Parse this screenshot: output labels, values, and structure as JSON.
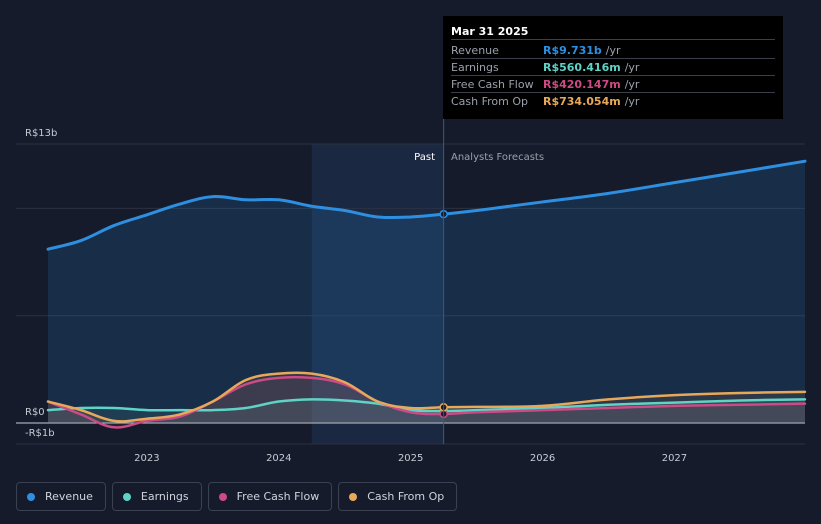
{
  "colors": {
    "background": "#151b2b",
    "past_band": "#1b2a44",
    "gridline": "#2b3242",
    "zero_line": "#c9ccd2",
    "revenue": "#2e8fe0",
    "earnings": "#5ed3c6",
    "free_cash_flow": "#cc4a86",
    "cash_from_op": "#e8a85a"
  },
  "section_labels": {
    "past": "Past",
    "forecast": "Analysts Forecasts"
  },
  "tooltip": {
    "date": "Mar 31 2025",
    "rows": [
      {
        "label": "Revenue",
        "value": "R$9.731b",
        "unit": "/yr",
        "color": "#2e8fe0"
      },
      {
        "label": "Earnings",
        "value": "R$560.416m",
        "unit": "/yr",
        "color": "#5ed3c6"
      },
      {
        "label": "Free Cash Flow",
        "value": "R$420.147m",
        "unit": "/yr",
        "color": "#cc4a86"
      },
      {
        "label": "Cash From Op",
        "value": "R$734.054m",
        "unit": "/yr",
        "color": "#e8a85a"
      }
    ]
  },
  "legend": [
    {
      "label": "Revenue",
      "color": "#2e8fe0"
    },
    {
      "label": "Earnings",
      "color": "#5ed3c6"
    },
    {
      "label": "Free Cash Flow",
      "color": "#cc4a86"
    },
    {
      "label": "Cash From Op",
      "color": "#e8a85a"
    }
  ],
  "chart_data": {
    "type": "line",
    "y_unit": "R$ billions",
    "ylim": [
      -1,
      13
    ],
    "y_tick_labels": [
      {
        "value": 13,
        "label": "R$13b"
      },
      {
        "value": 0,
        "label": "R$0"
      },
      {
        "value": -1,
        "label": "-R$1b"
      }
    ],
    "x_range": [
      2022.25,
      2027.99
    ],
    "x_ticks": [
      2023,
      2024,
      2025,
      2026,
      2027
    ],
    "x_tick_labels": [
      "2023",
      "2024",
      "2025",
      "2026",
      "2027"
    ],
    "past_band": [
      2024.25,
      2025.25
    ],
    "highlight_x": 2025.25,
    "series": [
      {
        "name": "Revenue",
        "color": "#2e8fe0",
        "area": true,
        "points": [
          [
            2022.25,
            8.1
          ],
          [
            2022.5,
            8.5
          ],
          [
            2022.75,
            9.2
          ],
          [
            2023.0,
            9.7
          ],
          [
            2023.25,
            10.2
          ],
          [
            2023.5,
            10.55
          ],
          [
            2023.75,
            10.4
          ],
          [
            2024.0,
            10.4
          ],
          [
            2024.25,
            10.1
          ],
          [
            2024.5,
            9.9
          ],
          [
            2024.75,
            9.6
          ],
          [
            2025.0,
            9.6
          ],
          [
            2025.25,
            9.731
          ],
          [
            2025.5,
            9.9
          ],
          [
            2025.75,
            10.1
          ],
          [
            2026.0,
            10.3
          ],
          [
            2026.5,
            10.7
          ],
          [
            2027.0,
            11.2
          ],
          [
            2027.5,
            11.7
          ],
          [
            2027.99,
            12.2
          ]
        ]
      },
      {
        "name": "Earnings",
        "color": "#5ed3c6",
        "points": [
          [
            2022.25,
            0.6
          ],
          [
            2022.5,
            0.7
          ],
          [
            2022.75,
            0.7
          ],
          [
            2023.0,
            0.6
          ],
          [
            2023.25,
            0.6
          ],
          [
            2023.5,
            0.6
          ],
          [
            2023.75,
            0.7
          ],
          [
            2024.0,
            1.0
          ],
          [
            2024.25,
            1.1
          ],
          [
            2024.5,
            1.05
          ],
          [
            2024.75,
            0.9
          ],
          [
            2025.0,
            0.6
          ],
          [
            2025.25,
            0.56
          ],
          [
            2025.5,
            0.6
          ],
          [
            2026.0,
            0.7
          ],
          [
            2026.5,
            0.85
          ],
          [
            2027.0,
            0.95
          ],
          [
            2027.5,
            1.05
          ],
          [
            2027.99,
            1.1
          ]
        ]
      },
      {
        "name": "Free Cash Flow",
        "color": "#cc4a86",
        "points": [
          [
            2022.25,
            1.0
          ],
          [
            2022.5,
            0.4
          ],
          [
            2022.75,
            -0.2
          ],
          [
            2023.0,
            0.1
          ],
          [
            2023.25,
            0.3
          ],
          [
            2023.5,
            1.0
          ],
          [
            2023.75,
            1.8
          ],
          [
            2024.0,
            2.1
          ],
          [
            2024.25,
            2.1
          ],
          [
            2024.5,
            1.8
          ],
          [
            2024.75,
            1.0
          ],
          [
            2025.0,
            0.5
          ],
          [
            2025.25,
            0.42
          ],
          [
            2025.5,
            0.5
          ],
          [
            2026.0,
            0.6
          ],
          [
            2026.5,
            0.7
          ],
          [
            2027.0,
            0.8
          ],
          [
            2027.5,
            0.85
          ],
          [
            2027.99,
            0.9
          ]
        ]
      },
      {
        "name": "Cash From Op",
        "color": "#e8a85a",
        "points": [
          [
            2022.25,
            1.0
          ],
          [
            2022.5,
            0.6
          ],
          [
            2022.75,
            0.1
          ],
          [
            2023.0,
            0.2
          ],
          [
            2023.25,
            0.4
          ],
          [
            2023.5,
            1.0
          ],
          [
            2023.75,
            2.0
          ],
          [
            2024.0,
            2.3
          ],
          [
            2024.25,
            2.3
          ],
          [
            2024.5,
            1.9
          ],
          [
            2024.75,
            1.0
          ],
          [
            2025.0,
            0.7
          ],
          [
            2025.25,
            0.734
          ],
          [
            2025.5,
            0.75
          ],
          [
            2026.0,
            0.8
          ],
          [
            2026.5,
            1.1
          ],
          [
            2027.0,
            1.3
          ],
          [
            2027.5,
            1.4
          ],
          [
            2027.99,
            1.45
          ]
        ]
      }
    ]
  }
}
